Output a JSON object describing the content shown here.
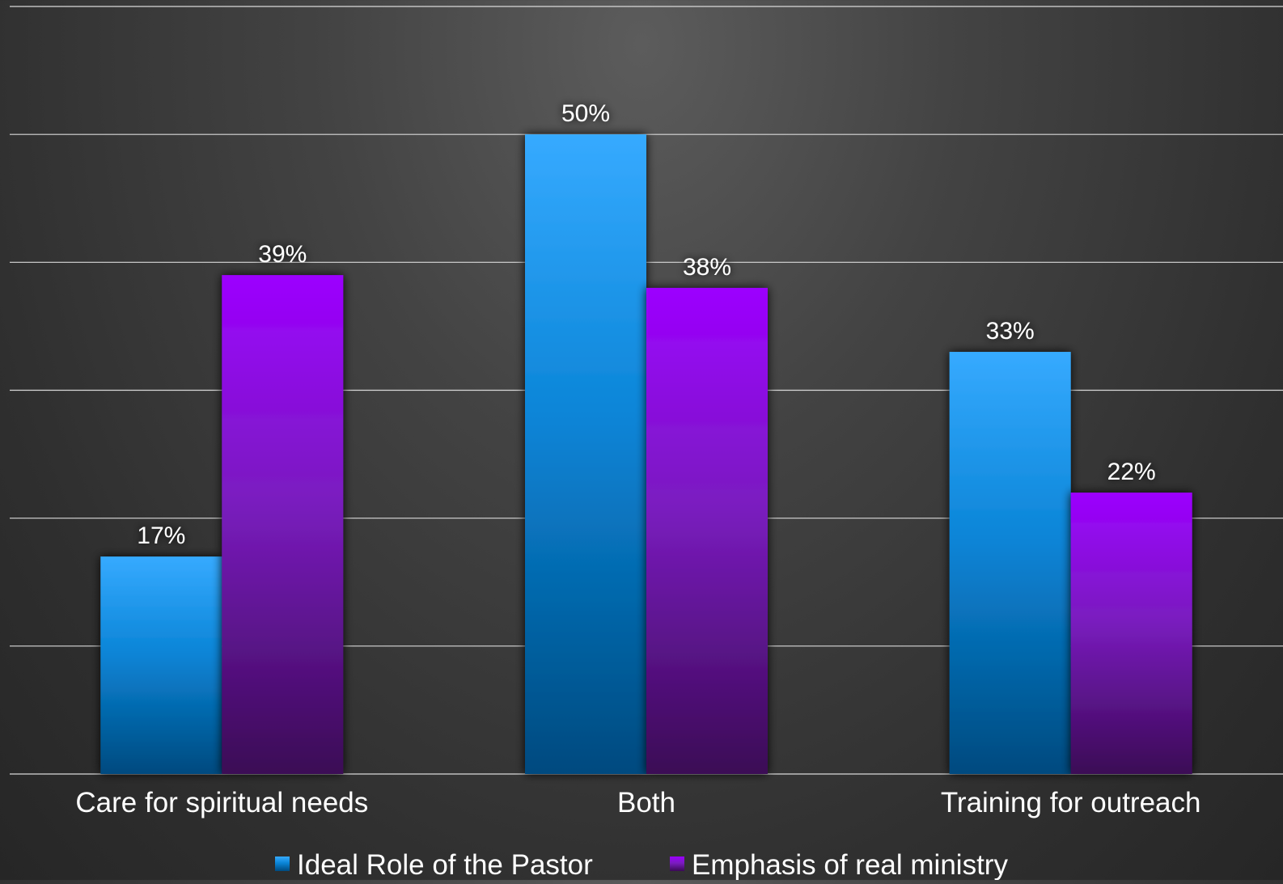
{
  "chart_data": {
    "type": "bar",
    "categories": [
      "Care for spiritual needs",
      "Both",
      "Training for outreach"
    ],
    "series": [
      {
        "name": "Ideal Role of the Pastor",
        "values": [
          17,
          50,
          33
        ],
        "data_labels": [
          "17%",
          "50%",
          "33%"
        ],
        "color": "#33a8ff"
      },
      {
        "name": "Emphasis of real ministry",
        "values": [
          39,
          38,
          22
        ],
        "data_labels": [
          "39%",
          "38%",
          "22%"
        ],
        "color": "#9900ff"
      }
    ],
    "ylim": [
      0,
      60
    ],
    "y_unit": "%",
    "grid": true,
    "y_axis_tick_labels_visible": false,
    "legend_position": "bottom"
  },
  "colors": {
    "background": "#3c3c3c",
    "gridline": "#d9d9d9",
    "text": "#ffffff"
  }
}
